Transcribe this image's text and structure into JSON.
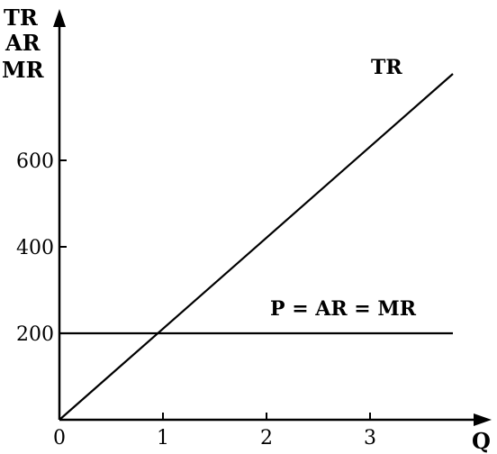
{
  "chart_data": {
    "type": "line",
    "title": "",
    "ylabel_lines": [
      "TR",
      "AR",
      "MR"
    ],
    "xlabel": "Q",
    "xlim": [
      0,
      4
    ],
    "ylim": [
      0,
      800
    ],
    "x_ticks": [
      0,
      1,
      2,
      3
    ],
    "x_tick_labels": [
      "0",
      "1",
      "2",
      "3"
    ],
    "y_ticks": [
      200,
      400,
      600
    ],
    "y_tick_labels": [
      "200",
      "400",
      "600"
    ],
    "grid": false,
    "legend": "none",
    "series": [
      {
        "name": "TR",
        "x": [
          0,
          3.8
        ],
        "y": [
          0,
          800
        ],
        "color": "#000000"
      },
      {
        "name": "P = AR = MR",
        "x": [
          0,
          3.8
        ],
        "y": [
          200,
          200
        ],
        "color": "#000000"
      }
    ]
  }
}
